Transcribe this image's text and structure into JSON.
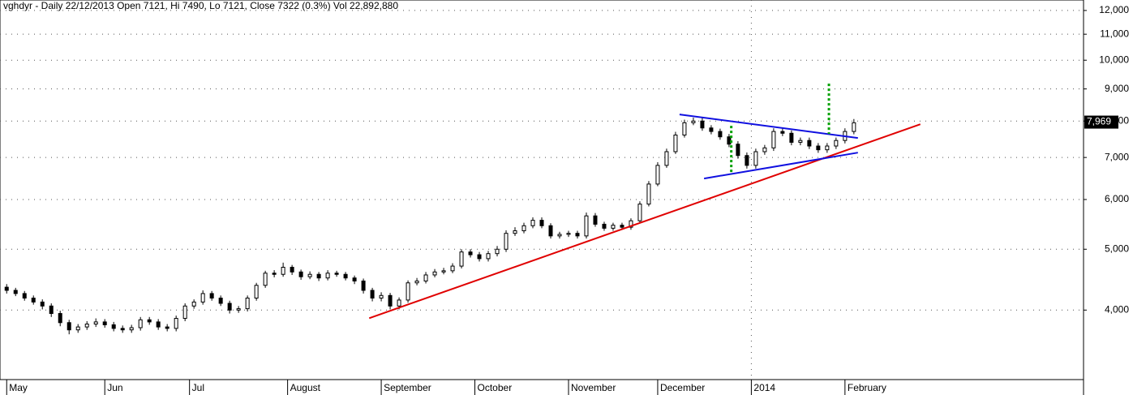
{
  "chart_data": {
    "type": "candlestick",
    "title": "vghdyr - Daily 22/12/2013 Open 7121, Hi 7490, Lo 7121, Close 7322 (0.3%) Vol 22,892,880",
    "log_scale": true,
    "grid": true,
    "up_color": "#ffffff",
    "down_color": "#000000",
    "xlim": [
      -1.5,
      241.5
    ],
    "xticks": [
      {
        "value": 0,
        "label": "May"
      },
      {
        "value": 22,
        "label": "Jun"
      },
      {
        "value": 41,
        "label": "Jul"
      },
      {
        "value": 63,
        "label": "August"
      },
      {
        "value": 84,
        "label": "September"
      },
      {
        "value": 105,
        "label": "October"
      },
      {
        "value": 126,
        "label": "November"
      },
      {
        "value": 146,
        "label": "December"
      },
      {
        "value": 167,
        "label": "2014"
      },
      {
        "value": 188,
        "label": "February"
      }
    ],
    "vgrid_ticks": [
      8
    ],
    "ylim": [
      3100,
      12470
    ],
    "yticks": [
      {
        "value": 4000,
        "label": "4,000"
      },
      {
        "value": 5000,
        "label": "5,000"
      },
      {
        "value": 6000,
        "label": "6,000"
      },
      {
        "value": 7000,
        "label": "7,000"
      },
      {
        "value": 8000,
        "label": "8,000"
      },
      {
        "value": 9000,
        "label": "9,000"
      },
      {
        "value": 10000,
        "label": "10,000"
      },
      {
        "value": 11000,
        "label": "11,000"
      },
      {
        "value": 12000,
        "label": "12,000"
      }
    ],
    "last_price": {
      "value": 7969,
      "label": "7,969"
    },
    "x": [
      0,
      2,
      4,
      6,
      8,
      10,
      12,
      14,
      16,
      18,
      20,
      22,
      24,
      26,
      28,
      30,
      32,
      34,
      36,
      38,
      40,
      42,
      44,
      46,
      48,
      50,
      52,
      54,
      56,
      58,
      60,
      62,
      64,
      66,
      68,
      70,
      72,
      74,
      76,
      78,
      80,
      82,
      84,
      86,
      88,
      90,
      92,
      94,
      96,
      98,
      100,
      102,
      104,
      106,
      108,
      110,
      112,
      114,
      116,
      118,
      120,
      122,
      124,
      126,
      128,
      130,
      132,
      134,
      136,
      138,
      140,
      142,
      144,
      146,
      148,
      150,
      152,
      154,
      156,
      158,
      160,
      162,
      164,
      166,
      168,
      170,
      172,
      174,
      176,
      178,
      180,
      182,
      184,
      186,
      188,
      190
    ],
    "open": [
      4350,
      4300,
      4250,
      4180,
      4120,
      4060,
      3950,
      3820,
      3720,
      3760,
      3800,
      3830,
      3790,
      3740,
      3720,
      3750,
      3860,
      3830,
      3760,
      3740,
      3880,
      4060,
      4120,
      4250,
      4180,
      4100,
      4000,
      4020,
      4180,
      4380,
      4580,
      4560,
      4680,
      4600,
      4520,
      4560,
      4500,
      4580,
      4560,
      4500,
      4450,
      4300,
      4180,
      4220,
      4060,
      4150,
      4420,
      4450,
      4550,
      4600,
      4620,
      4700,
      4950,
      4900,
      4830,
      4920,
      5000,
      5300,
      5350,
      5450,
      5560,
      5450,
      5250,
      5280,
      5300,
      5250,
      5650,
      5480,
      5400,
      5460,
      5420,
      5550,
      5900,
      6350,
      6800,
      7150,
      7600,
      7950,
      8000,
      7800,
      7700,
      7550,
      7350,
      7050,
      6800,
      7150,
      7250,
      7700,
      7650,
      7400,
      7450,
      7300,
      7200,
      7300,
      7450,
      7700
    ],
    "high": [
      4400,
      4340,
      4290,
      4220,
      4160,
      4100,
      3990,
      3860,
      3800,
      3840,
      3880,
      3870,
      3830,
      3780,
      3790,
      3900,
      3900,
      3870,
      3800,
      3920,
      4100,
      4160,
      4300,
      4290,
      4220,
      4140,
      4060,
      4220,
      4420,
      4620,
      4630,
      4760,
      4720,
      4640,
      4610,
      4600,
      4630,
      4620,
      4600,
      4540,
      4490,
      4340,
      4270,
      4260,
      4190,
      4460,
      4500,
      4600,
      4650,
      4670,
      4750,
      5000,
      5000,
      4950,
      4970,
      5060,
      5360,
      5420,
      5510,
      5620,
      5620,
      5500,
      5330,
      5350,
      5350,
      5720,
      5710,
      5530,
      5510,
      5510,
      5600,
      5960,
      6420,
      6880,
      7230,
      7690,
      8040,
      8100,
      8090,
      7880,
      7780,
      7630,
      7430,
      7130,
      7230,
      7330,
      7790,
      7790,
      7730,
      7530,
      7530,
      7380,
      7380,
      7530,
      7790,
      8060
    ],
    "low": [
      4250,
      4210,
      4140,
      4080,
      4010,
      3900,
      3770,
      3660,
      3680,
      3720,
      3760,
      3750,
      3700,
      3680,
      3680,
      3710,
      3790,
      3720,
      3700,
      3700,
      3840,
      4020,
      4080,
      4140,
      4060,
      3950,
      3960,
      3980,
      4140,
      4340,
      4510,
      4520,
      4550,
      4470,
      4480,
      4450,
      4460,
      4520,
      4460,
      4400,
      4250,
      4130,
      4130,
      4010,
      4010,
      4110,
      4380,
      4410,
      4510,
      4560,
      4580,
      4660,
      4850,
      4780,
      4780,
      4870,
      4950,
      5250,
      5300,
      5400,
      5400,
      5200,
      5200,
      5230,
      5200,
      5200,
      5430,
      5350,
      5350,
      5370,
      5370,
      5500,
      5850,
      6300,
      6740,
      7090,
      7530,
      7880,
      7720,
      7620,
      7470,
      7270,
      6970,
      6720,
      6720,
      7070,
      7170,
      7570,
      7320,
      7320,
      7220,
      7120,
      7120,
      7220,
      7370,
      7620
    ],
    "close": [
      4300,
      4250,
      4180,
      4120,
      4060,
      3950,
      3820,
      3720,
      3760,
      3800,
      3830,
      3790,
      3740,
      3720,
      3750,
      3860,
      3830,
      3760,
      3740,
      3880,
      4060,
      4120,
      4250,
      4180,
      4100,
      4000,
      4020,
      4180,
      4380,
      4580,
      4560,
      4680,
      4600,
      4520,
      4560,
      4500,
      4580,
      4560,
      4500,
      4450,
      4300,
      4180,
      4220,
      4060,
      4150,
      4420,
      4450,
      4550,
      4600,
      4620,
      4700,
      4950,
      4900,
      4830,
      4920,
      5000,
      5300,
      5350,
      5450,
      5560,
      5450,
      5250,
      5280,
      5300,
      5250,
      5650,
      5480,
      5400,
      5460,
      5420,
      5550,
      5900,
      6350,
      6800,
      7150,
      7600,
      7950,
      8000,
      7800,
      7700,
      7550,
      7350,
      7050,
      6800,
      7150,
      7250,
      7700,
      7650,
      7400,
      7450,
      7300,
      7200,
      7300,
      7450,
      7700,
      7950
    ],
    "lines": [
      {
        "color": "#e00000",
        "style": "solid",
        "x": [
          81.3,
          204.9
        ],
        "y": [
          3883,
          7907
        ]
      },
      {
        "color": "#1010e0",
        "style": "solid",
        "x": [
          150.9,
          190.9
        ],
        "y": [
          8195,
          7518
        ]
      },
      {
        "color": "#1010e0",
        "style": "solid",
        "x": [
          156.4,
          190.9
        ],
        "y": [
          6480,
          7125
        ]
      },
      {
        "color": "#00a000",
        "style": "dotted",
        "x": [
          162.5,
          162.5
        ],
        "y": [
          7860,
          6575
        ]
      },
      {
        "color": "#00a000",
        "style": "dotted",
        "x": [
          184.4,
          184.4
        ],
        "y": [
          9177,
          7631
        ]
      }
    ]
  }
}
